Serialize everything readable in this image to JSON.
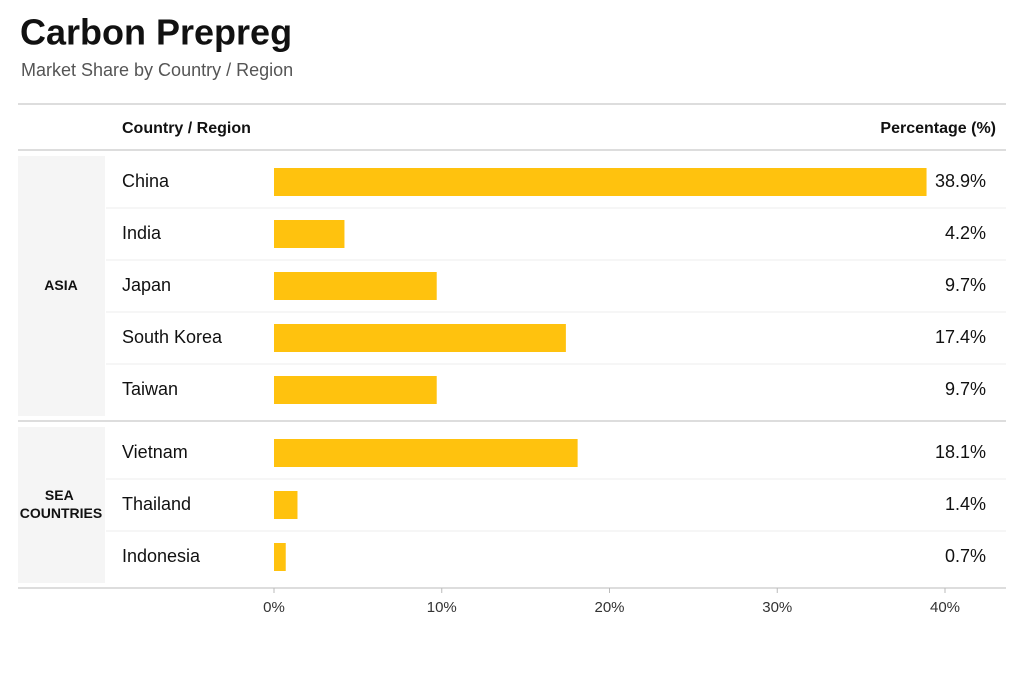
{
  "chart_data": {
    "type": "bar",
    "title": "Carbon Prepreg",
    "subtitle": "Market Share by Country / Region",
    "category_header": "Country / Region",
    "value_header": "Percentage (%)",
    "color": "#ffc20e",
    "groups": [
      {
        "name": "ASIA",
        "categories": [
          "China",
          "India",
          "Japan",
          "South Korea",
          "Taiwan"
        ],
        "values": [
          38.9,
          4.2,
          9.7,
          17.4,
          9.7
        ],
        "value_labels": [
          "38.9%",
          "4.2%",
          "9.7%",
          "17.4%",
          "9.7%"
        ]
      },
      {
        "name": "SEA COUNTRIES",
        "categories": [
          "Vietnam",
          "Thailand",
          "Indonesia"
        ],
        "values": [
          18.1,
          1.4,
          0.7
        ],
        "value_labels": [
          "18.1%",
          "1.4%",
          "0.7%"
        ]
      }
    ],
    "xlim": [
      0,
      40
    ],
    "xticks": [
      {
        "value": 0,
        "label": "0%"
      },
      {
        "value": 10,
        "label": "10%"
      },
      {
        "value": 20,
        "label": "20%"
      },
      {
        "value": 30,
        "label": "30%"
      },
      {
        "value": 40,
        "label": "40%"
      }
    ]
  }
}
